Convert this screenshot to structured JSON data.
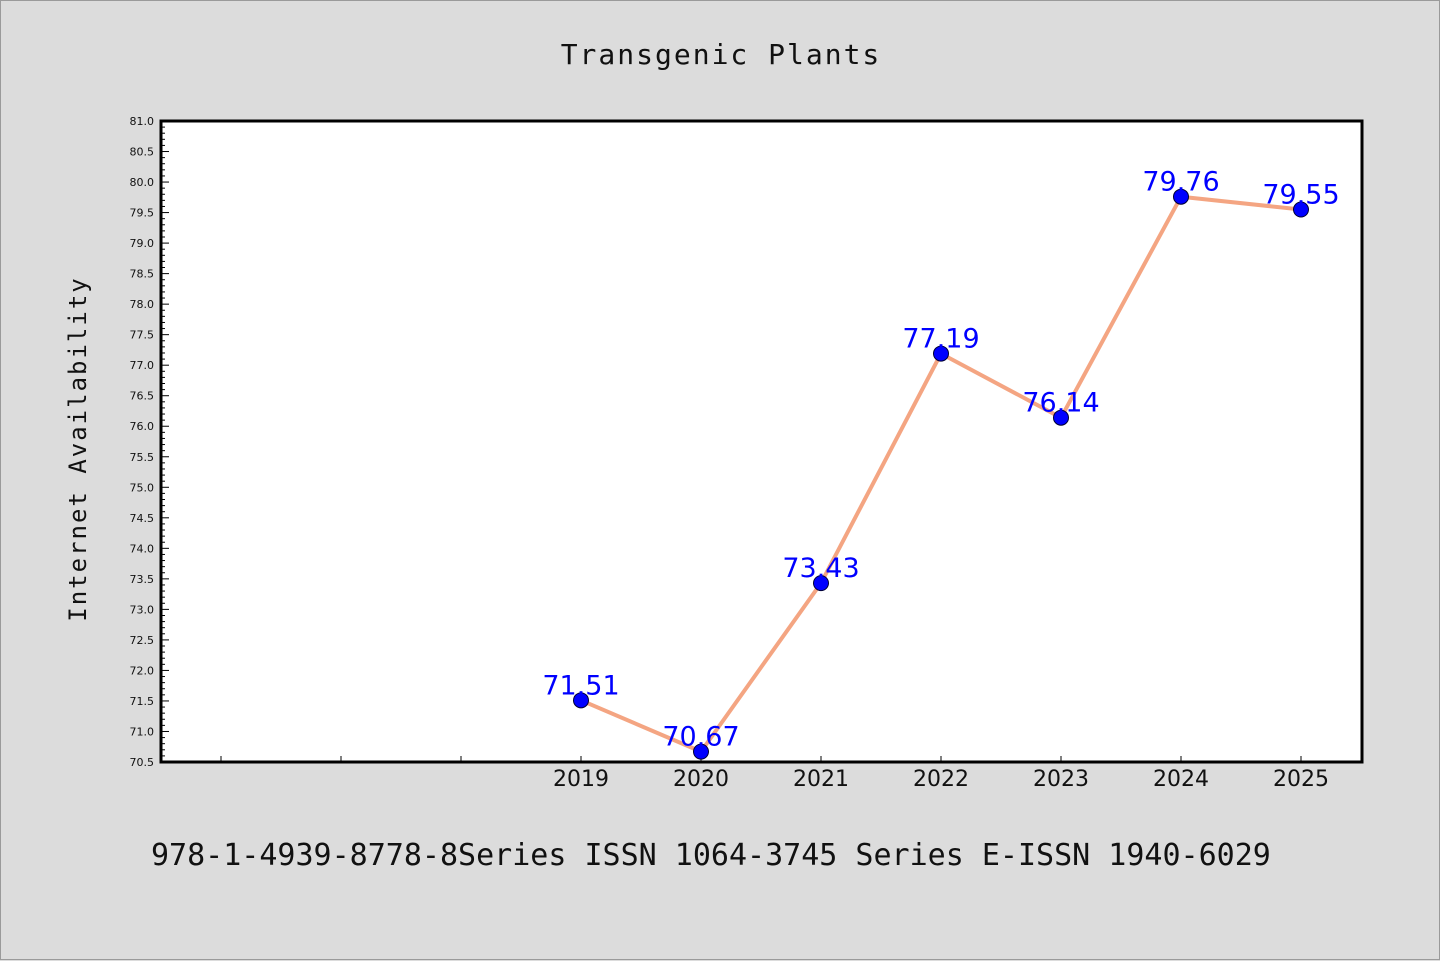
{
  "chart_data": {
    "type": "line",
    "title": "Transgenic Plants",
    "xlabel": "",
    "ylabel": "Internet Availability",
    "x": [
      "2019",
      "2020",
      "2021",
      "2022",
      "2023",
      "2024",
      "2025"
    ],
    "series": [
      {
        "values": [
          71.51,
          70.67,
          73.43,
          77.19,
          76.14,
          79.76,
          79.55
        ],
        "line_color": "#f4a582",
        "marker_color": "#0000ff"
      }
    ],
    "data_labels": [
      "71.51",
      "70.67",
      "73.43",
      "77.19",
      "76.14",
      "79.76",
      "79.55"
    ],
    "ylim": [
      70.5,
      81.0
    ],
    "yticks": [
      "70.5",
      "71.0",
      "71.5",
      "72.0",
      "72.5",
      "73.0",
      "73.5",
      "74.0",
      "74.5",
      "75.0",
      "75.5",
      "76.0",
      "76.5",
      "77.0",
      "77.5",
      "78.0",
      "78.5",
      "79.0",
      "79.5",
      "80.0",
      "80.5",
      "81.0"
    ],
    "grid": false,
    "legend": "none"
  },
  "footer": {
    "text": "978-1-4939-8778-8Series ISSN 1064-3745 Series E-ISSN 1940-6029"
  },
  "colors": {
    "background": "#dcdcdc",
    "plot_background": "#ffffff",
    "line": "#f4a582",
    "marker": "#0000ff",
    "data_label": "#0000ff"
  }
}
